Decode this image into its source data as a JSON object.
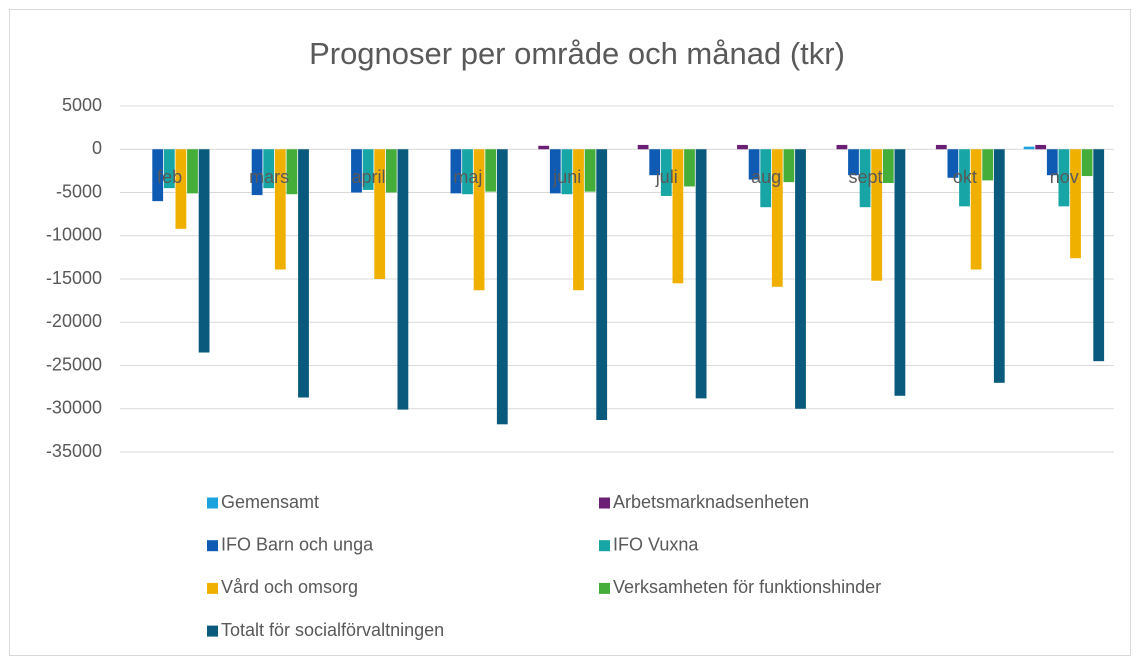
{
  "chart_data": {
    "type": "bar",
    "title": "Prognoser per område och månad (tkr)",
    "categories": [
      "feb",
      "mars",
      "april",
      "maj",
      "juni",
      "juli",
      "aug",
      "sept",
      "okt",
      "nov"
    ],
    "series": [
      {
        "name": "Gemensamt",
        "color": "#1ca3de",
        "values": [
          0,
          0,
          0,
          0,
          0,
          0,
          0,
          0,
          0,
          300
        ]
      },
      {
        "name": "Arbetsmarknadsenheten",
        "color": "#6b2076",
        "values": [
          0,
          0,
          0,
          0,
          400,
          500,
          500,
          500,
          500,
          500
        ]
      },
      {
        "name": "IFO Barn och unga",
        "color": "#0f5bb4",
        "values": [
          -6000,
          -5300,
          -5000,
          -5100,
          -5100,
          -3000,
          -3500,
          -3000,
          -3300,
          -3000
        ]
      },
      {
        "name": "IFO Vuxna",
        "color": "#17a5a5",
        "values": [
          -4500,
          -4500,
          -4700,
          -5200,
          -5200,
          -5400,
          -6700,
          -6700,
          -6600,
          -6600
        ]
      },
      {
        "name": "Vård och omsorg",
        "color": "#f0b000",
        "values": [
          -9200,
          -13900,
          -15000,
          -16300,
          -16300,
          -15500,
          -15900,
          -15200,
          -13900,
          -12600
        ]
      },
      {
        "name": "Verksamheten för funktionshinder",
        "color": "#45ae3a",
        "values": [
          -5100,
          -5200,
          -5000,
          -4900,
          -4900,
          -4300,
          -3800,
          -3900,
          -3600,
          -3100
        ]
      },
      {
        "name": "Totalt för socialförvaltningen",
        "color": "#0a5a7e",
        "values": [
          -23500,
          -28700,
          -30100,
          -31800,
          -31300,
          -28800,
          -30000,
          -28500,
          -27000,
          -24500
        ]
      }
    ],
    "ylim": [
      -35000,
      5000
    ],
    "yticks": [
      -35000,
      -30000,
      -25000,
      -20000,
      -15000,
      -10000,
      -5000,
      0,
      5000
    ],
    "grid": true,
    "legend": "bottom"
  }
}
